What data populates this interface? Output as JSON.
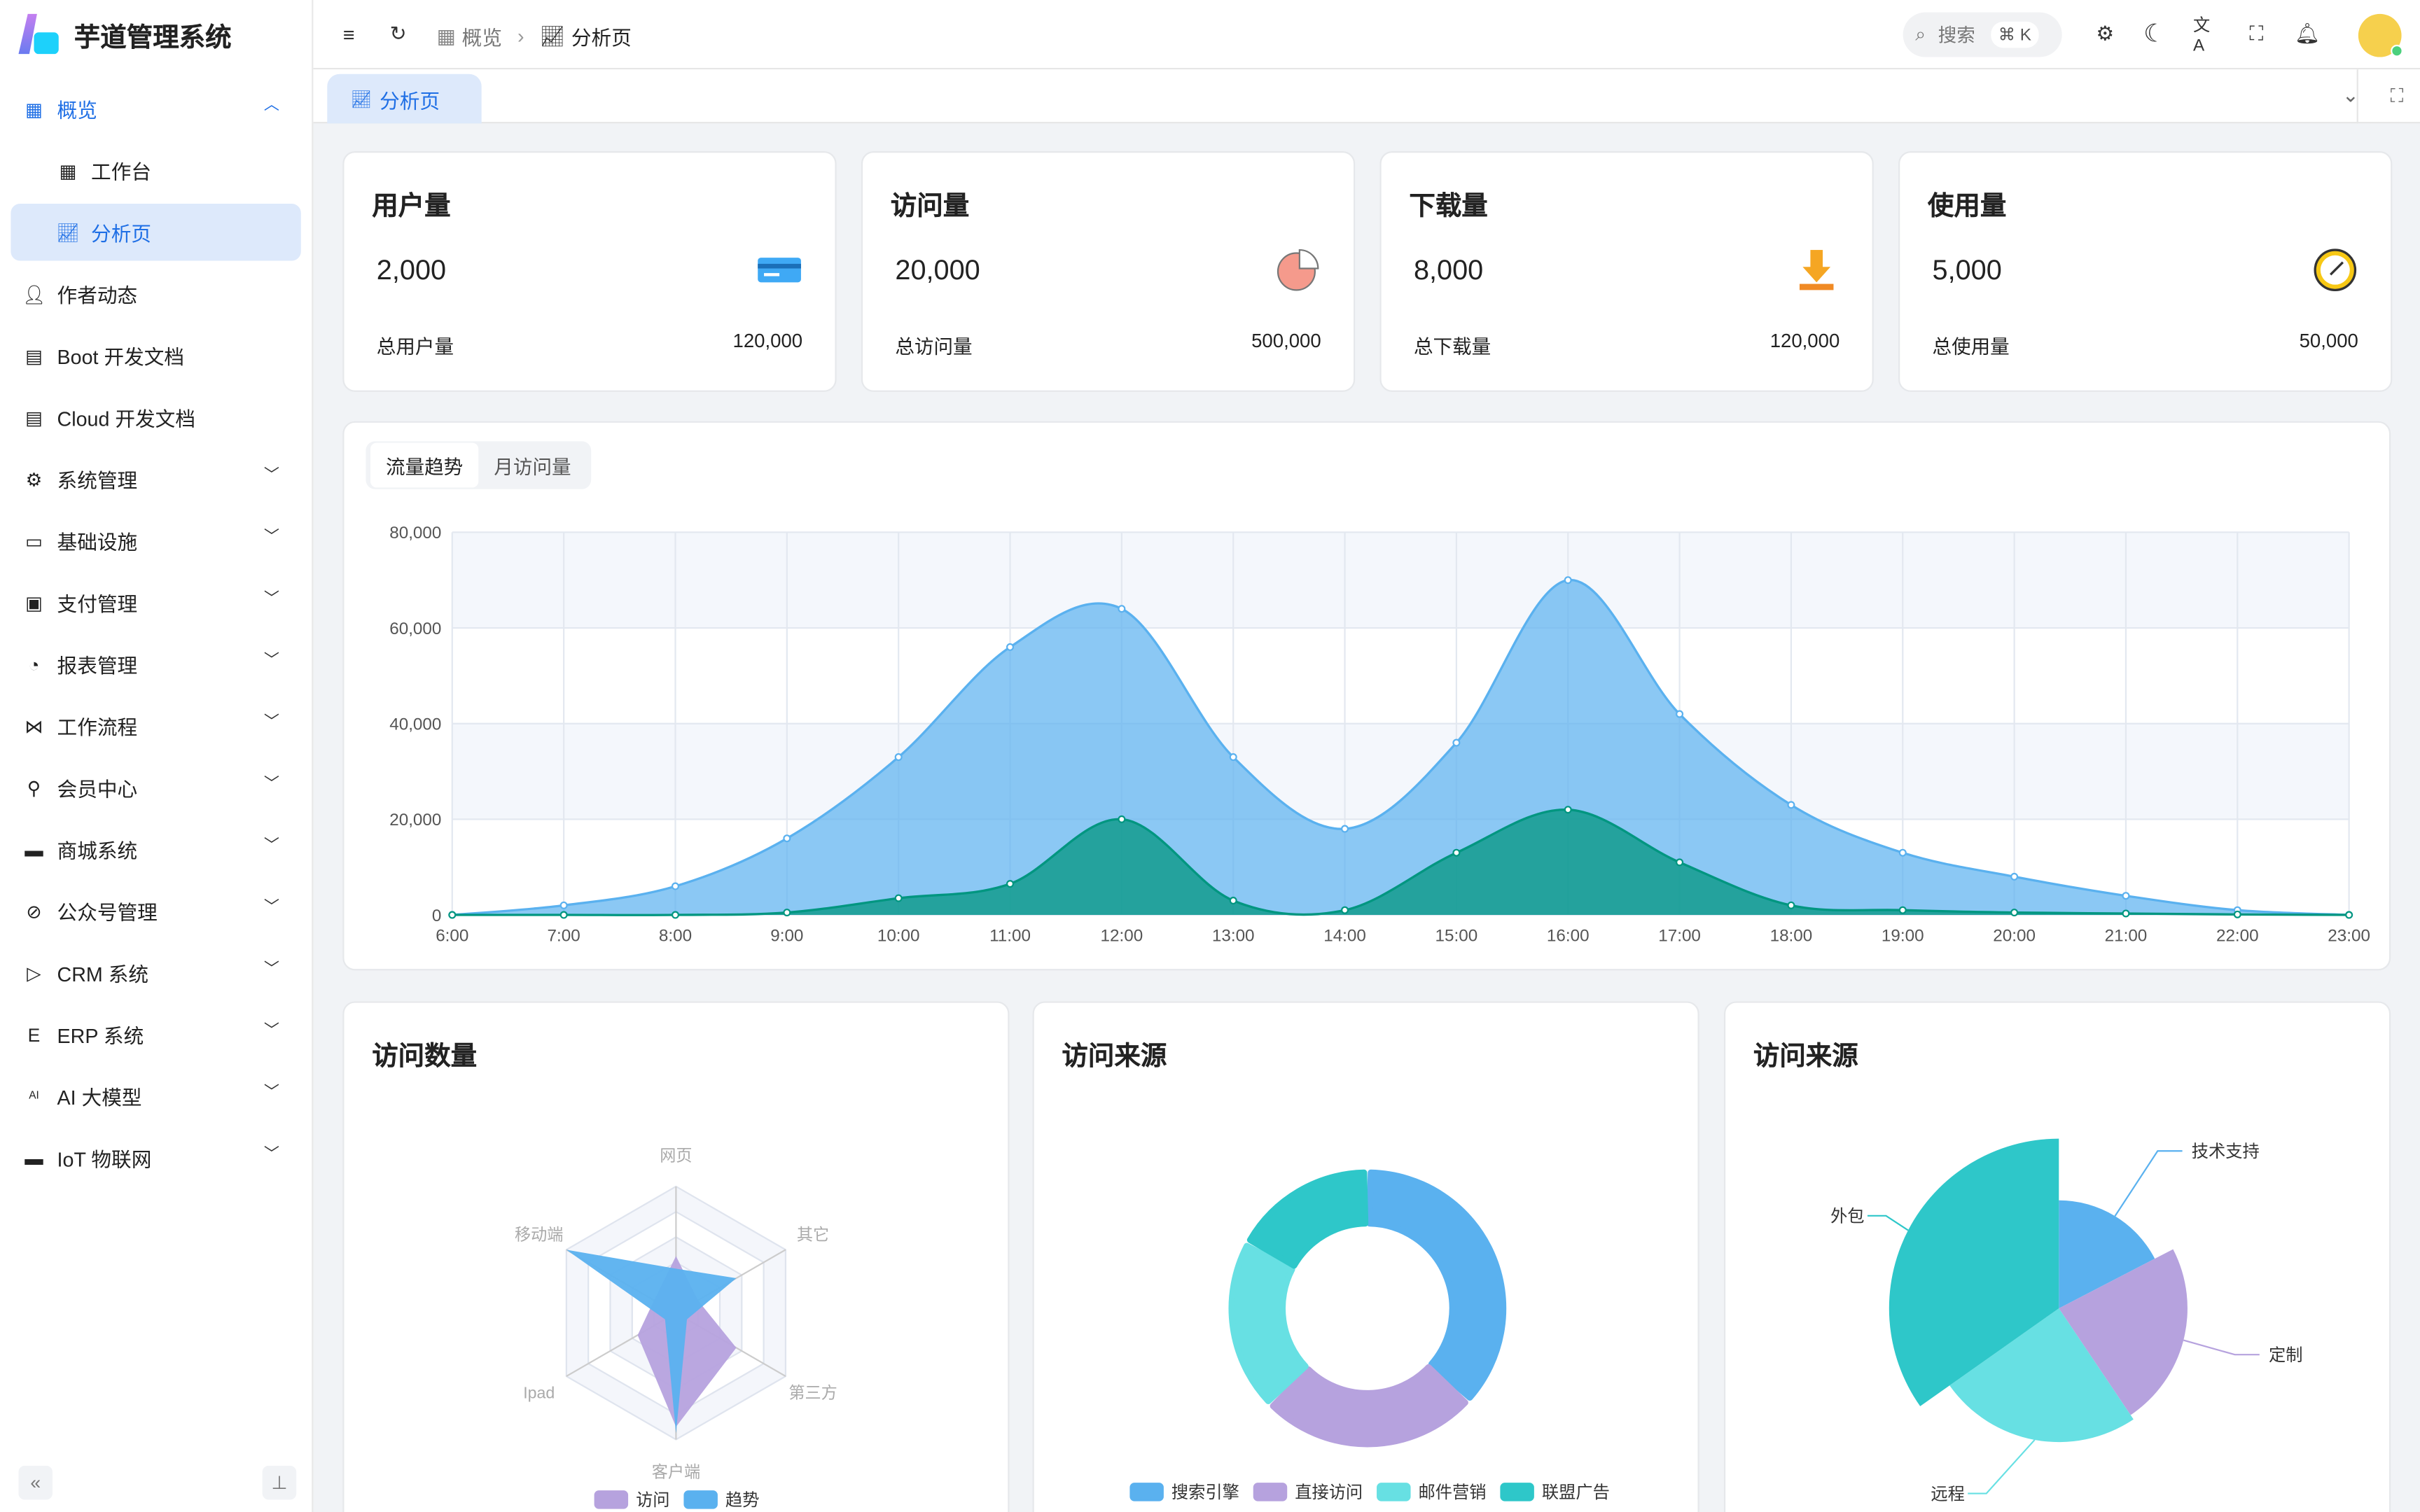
{
  "app": {
    "title": "芋道管理系统"
  },
  "sidebar": {
    "items": [
      {
        "label": "概览",
        "icon": "grid-icon",
        "open": true
      },
      {
        "label": "工作台",
        "icon": "grid-icon",
        "sub": true
      },
      {
        "label": "分析页",
        "icon": "chart-icon",
        "sub": true,
        "active": true
      },
      {
        "label": "作者动态",
        "icon": "user-icon"
      },
      {
        "label": "Boot 开发文档",
        "icon": "doc-icon"
      },
      {
        "label": "Cloud 开发文档",
        "icon": "doc-icon"
      },
      {
        "label": "系统管理",
        "icon": "gear-icon",
        "chevron": true
      },
      {
        "label": "基础设施",
        "icon": "monitor-icon",
        "chevron": true
      },
      {
        "label": "支付管理",
        "icon": "pay-icon",
        "chevron": true
      },
      {
        "label": "报表管理",
        "icon": "pie-icon",
        "chevron": true
      },
      {
        "label": "工作流程",
        "icon": "flow-icon",
        "chevron": true
      },
      {
        "label": "会员中心",
        "icon": "bike-icon",
        "chevron": true
      },
      {
        "label": "商城系统",
        "icon": "shop-icon",
        "chevron": true
      },
      {
        "label": "公众号管理",
        "icon": "compass-icon",
        "chevron": true
      },
      {
        "label": "CRM 系统",
        "icon": "crm-icon",
        "chevron": true
      },
      {
        "label": "ERP 系统",
        "icon": "erp-icon",
        "chevron": true
      },
      {
        "label": "AI 大模型",
        "icon": "ai-icon",
        "chevron": true
      },
      {
        "label": "IoT 物联网",
        "icon": "iot-icon",
        "chevron": true
      }
    ]
  },
  "header": {
    "breadcrumb": [
      "概览",
      "分析页"
    ],
    "search_placeholder": "搜索",
    "search_shortcut": "⌘ K"
  },
  "tabs": [
    {
      "label": "分析页",
      "active": true
    }
  ],
  "stats": [
    {
      "title": "用户量",
      "value": "2,000",
      "total_label": "总用户量",
      "total": "120,000",
      "icon": "card-icon"
    },
    {
      "title": "访问量",
      "value": "20,000",
      "total_label": "总访问量",
      "total": "500,000",
      "icon": "pie-chart-icon"
    },
    {
      "title": "下载量",
      "value": "8,000",
      "total_label": "总下载量",
      "total": "120,000",
      "icon": "download-icon"
    },
    {
      "title": "使用量",
      "value": "5,000",
      "total_label": "总使用量",
      "total": "50,000",
      "icon": "clock-icon"
    }
  ],
  "trend": {
    "tabs": [
      "流量趋势",
      "月访问量"
    ],
    "active_tab": 0
  },
  "chart_data": [
    {
      "type": "area",
      "x": [
        "6:00",
        "7:00",
        "8:00",
        "9:00",
        "10:00",
        "11:00",
        "12:00",
        "13:00",
        "14:00",
        "15:00",
        "16:00",
        "17:00",
        "18:00",
        "19:00",
        "20:00",
        "21:00",
        "22:00",
        "23:00"
      ],
      "ylim": [
        0,
        80000
      ],
      "yticks": [
        "0",
        "20,000",
        "40,000",
        "60,000",
        "80,000"
      ],
      "grid": true,
      "series": [
        {
          "values": [
            0,
            2000,
            6000,
            16000,
            33000,
            56000,
            64000,
            33000,
            18000,
            36000,
            70000,
            42000,
            23000,
            13000,
            8000,
            4000,
            1000,
            0
          ],
          "color": "#5ab1ef"
        },
        {
          "values": [
            0,
            0,
            0,
            500,
            3500,
            6500,
            20000,
            3000,
            1000,
            13000,
            22000,
            11000,
            2000,
            1000,
            500,
            300,
            100,
            0
          ],
          "color": "#019680"
        }
      ]
    },
    {
      "type": "radar",
      "title": "访问数量",
      "indicators": [
        "网页",
        "其它",
        "第三方",
        "客户端",
        "Ipad",
        "移动端"
      ],
      "max": 100,
      "series": [
        {
          "name": "访问",
          "color": "#b6a2de",
          "values": [
            45,
            20,
            55,
            90,
            35,
            20
          ]
        },
        {
          "name": "趋势",
          "color": "#5ab1ef",
          "values": [
            35,
            55,
            10,
            95,
            10,
            100
          ]
        }
      ],
      "legend": "bottom"
    },
    {
      "type": "pie",
      "title": "访问来源",
      "donut": true,
      "categories": [
        "搜索引擎",
        "直接访问",
        "邮件营销",
        "联盟广告"
      ],
      "values": [
        1048,
        735,
        580,
        484
      ],
      "colors": [
        "#5ab1ef",
        "#b6a2de",
        "#67e0e3",
        "#2ec7c9"
      ],
      "legend": "bottom"
    },
    {
      "type": "pie",
      "title": "访问来源",
      "rose": true,
      "categories": [
        "技术支持",
        "定制",
        "远程",
        "外包"
      ],
      "values": [
        60,
        80,
        85,
        120
      ],
      "colors": [
        "#5ab1ef",
        "#b6a2de",
        "#67e0e3",
        "#2ec7c9"
      ]
    }
  ]
}
